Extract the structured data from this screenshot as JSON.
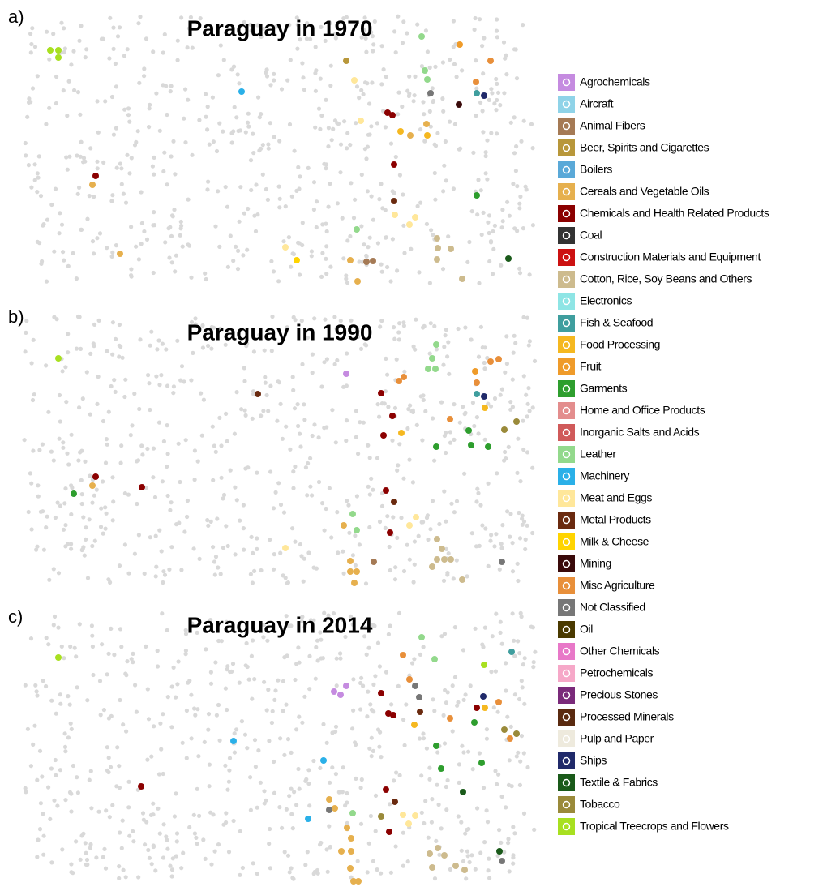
{
  "legend": {
    "items": [
      {
        "name": "Agrochemicals",
        "color": "#c58be0"
      },
      {
        "name": "Aircraft",
        "color": "#8fd3e8"
      },
      {
        "name": "Animal Fibers",
        "color": "#a57a55"
      },
      {
        "name": "Beer, Spirits and Cigarettes",
        "color": "#b8973a"
      },
      {
        "name": "Boilers",
        "color": "#5aa9d8"
      },
      {
        "name": "Cereals and Vegetable Oils",
        "color": "#e6b04e"
      },
      {
        "name": "Chemicals and Health Related Products",
        "color": "#8b0000"
      },
      {
        "name": "Coal",
        "color": "#333333"
      },
      {
        "name": "Construction Materials and Equipment",
        "color": "#cc1111"
      },
      {
        "name": "Cotton, Rice, Soy Beans and Others",
        "color": "#cdbb8e"
      },
      {
        "name": "Electronics",
        "color": "#8ee5e5"
      },
      {
        "name": "Fish & Seafood",
        "color": "#3f9e9e"
      },
      {
        "name": "Food Processing",
        "color": "#f5b820"
      },
      {
        "name": "Fruit",
        "color": "#ef9b2a"
      },
      {
        "name": "Garments",
        "color": "#2e9e2e"
      },
      {
        "name": "Home and Office Products",
        "color": "#e38d8d"
      },
      {
        "name": "Inorganic Salts and Acids",
        "color": "#d05a5a"
      },
      {
        "name": "Leather",
        "color": "#93d98c"
      },
      {
        "name": "Machinery",
        "color": "#2ab0e8"
      },
      {
        "name": "Meat and Eggs",
        "color": "#ffe79a"
      },
      {
        "name": "Metal Products",
        "color": "#6a2a0f"
      },
      {
        "name": "Milk & Cheese",
        "color": "#ffd400"
      },
      {
        "name": "Mining",
        "color": "#3a0a0a"
      },
      {
        "name": "Misc Agriculture",
        "color": "#e88f3a"
      },
      {
        "name": "Not Classified",
        "color": "#777777"
      },
      {
        "name": "Oil",
        "color": "#4a3a00"
      },
      {
        "name": "Other Chemicals",
        "color": "#e878c8"
      },
      {
        "name": "Petrochemicals",
        "color": "#f6a8c8"
      },
      {
        "name": "Precious Stones",
        "color": "#7a2a7a"
      },
      {
        "name": "Processed Minerals",
        "color": "#5a2a10"
      },
      {
        "name": "Pulp and Paper",
        "color": "#eeeadd"
      },
      {
        "name": "Ships",
        "color": "#202a6a"
      },
      {
        "name": "Textile & Fabrics",
        "color": "#1a5a1a"
      },
      {
        "name": "Tobacco",
        "color": "#9a8a3a"
      },
      {
        "name": "Tropical Treecrops and Flowers",
        "color": "#a8e020"
      }
    ]
  },
  "chart_data": [
    {
      "type": "scatter",
      "label": "a)",
      "title": "Paraguay in 1970",
      "xlim": [
        0,
        640
      ],
      "ylim": [
        0,
        340
      ],
      "x": [
        42,
        52,
        52,
        500,
        547,
        585,
        407,
        504,
        507,
        417,
        567,
        278,
        511,
        568,
        577,
        546,
        458,
        464,
        425,
        506,
        474,
        486,
        507,
        466,
        98,
        94,
        568,
        466,
        467,
        492,
        485,
        420,
        519,
        520,
        536,
        128,
        332,
        346,
        412,
        432,
        440,
        519,
        607,
        550,
        421
      ],
      "y": [
        293,
        293,
        284,
        310,
        300,
        280,
        280,
        268,
        257,
        256,
        254,
        242,
        240,
        240,
        237,
        226,
        216,
        213,
        206,
        202,
        193,
        188,
        188,
        152,
        138,
        127,
        114,
        107,
        90,
        87,
        78,
        72,
        61,
        49,
        48,
        42,
        50,
        34,
        34,
        32,
        33,
        35,
        36,
        11,
        8
      ],
      "category": [
        34,
        34,
        34,
        17,
        13,
        23,
        3,
        17,
        17,
        19,
        23,
        18,
        24,
        11,
        31,
        22,
        6,
        6,
        19,
        5,
        12,
        5,
        12,
        6,
        6,
        5,
        14,
        20,
        19,
        19,
        19,
        17,
        9,
        9,
        9,
        5,
        19,
        21,
        5,
        2,
        2,
        9,
        32,
        9,
        5
      ]
    },
    {
      "type": "scatter",
      "label": "b)",
      "title": "Paraguay in 1990",
      "xlim": [
        0,
        640
      ],
      "ylim": [
        0,
        340
      ],
      "x": [
        52,
        518,
        513,
        508,
        517,
        585,
        595,
        407,
        478,
        472,
        566,
        568,
        298,
        450,
        568,
        577,
        578,
        464,
        535,
        617,
        602,
        558,
        475,
        453,
        518,
        561,
        582,
        98,
        94,
        155,
        71,
        456,
        466,
        415,
        493,
        404,
        485,
        420,
        461,
        519,
        332,
        525,
        519,
        528,
        536,
        412,
        441,
        513,
        599,
        412,
        420,
        550,
        417
      ],
      "y": [
        283,
        300,
        283,
        270,
        270,
        279,
        282,
        264,
        260,
        255,
        267,
        253,
        239,
        240,
        239,
        236,
        222,
        212,
        208,
        205,
        195,
        194,
        191,
        188,
        174,
        176,
        174,
        137,
        126,
        124,
        116,
        120,
        106,
        91,
        87,
        77,
        77,
        71,
        68,
        60,
        49,
        48,
        35,
        35,
        35,
        33,
        32,
        26,
        32,
        20,
        20,
        10,
        6
      ],
      "category": [
        34,
        17,
        17,
        17,
        17,
        23,
        23,
        0,
        23,
        23,
        13,
        23,
        20,
        6,
        11,
        31,
        12,
        6,
        23,
        33,
        33,
        14,
        12,
        6,
        14,
        14,
        14,
        6,
        5,
        6,
        14,
        6,
        20,
        17,
        19,
        5,
        19,
        17,
        6,
        9,
        19,
        9,
        9,
        9,
        9,
        5,
        2,
        9,
        24,
        5,
        5,
        9,
        5
      ]
    },
    {
      "type": "scatter",
      "label": "c)",
      "title": "Paraguay in 2014",
      "xlim": [
        0,
        640
      ],
      "ylim": [
        0,
        340
      ],
      "x": [
        52,
        500,
        611,
        477,
        516,
        577,
        485,
        492,
        407,
        392,
        400,
        450,
        497,
        576,
        595,
        568,
        578,
        459,
        465,
        498,
        535,
        565,
        491,
        602,
        617,
        609,
        268,
        518,
        379,
        574,
        524,
        154,
        456,
        551,
        386,
        467,
        393,
        386,
        415,
        450,
        477,
        492,
        484,
        360,
        460,
        408,
        413,
        520,
        510,
        528,
        596,
        599,
        401,
        413,
        542,
        513,
        553,
        412,
        416,
        422
      ],
      "y": [
        279,
        304,
        286,
        282,
        277,
        270,
        252,
        244,
        244,
        237,
        233,
        235,
        230,
        231,
        224,
        217,
        217,
        210,
        208,
        212,
        204,
        199,
        196,
        190,
        185,
        179,
        176,
        170,
        152,
        149,
        142,
        120,
        116,
        113,
        104,
        101,
        93,
        91,
        87,
        83,
        85,
        84,
        74,
        80,
        64,
        69,
        56,
        44,
        37,
        35,
        40,
        28,
        40,
        40,
        22,
        20,
        17,
        19,
        3,
        3
      ],
      "category": [
        34,
        17,
        11,
        23,
        17,
        34,
        23,
        24,
        0,
        0,
        0,
        6,
        24,
        31,
        23,
        6,
        12,
        6,
        6,
        20,
        23,
        14,
        12,
        33,
        33,
        23,
        18,
        14,
        18,
        14,
        14,
        6,
        6,
        32,
        5,
        20,
        5,
        24,
        17,
        33,
        19,
        19,
        19,
        18,
        6,
        5,
        5,
        9,
        9,
        9,
        32,
        24,
        5,
        5,
        9,
        9,
        9,
        5,
        5,
        5
      ]
    }
  ]
}
